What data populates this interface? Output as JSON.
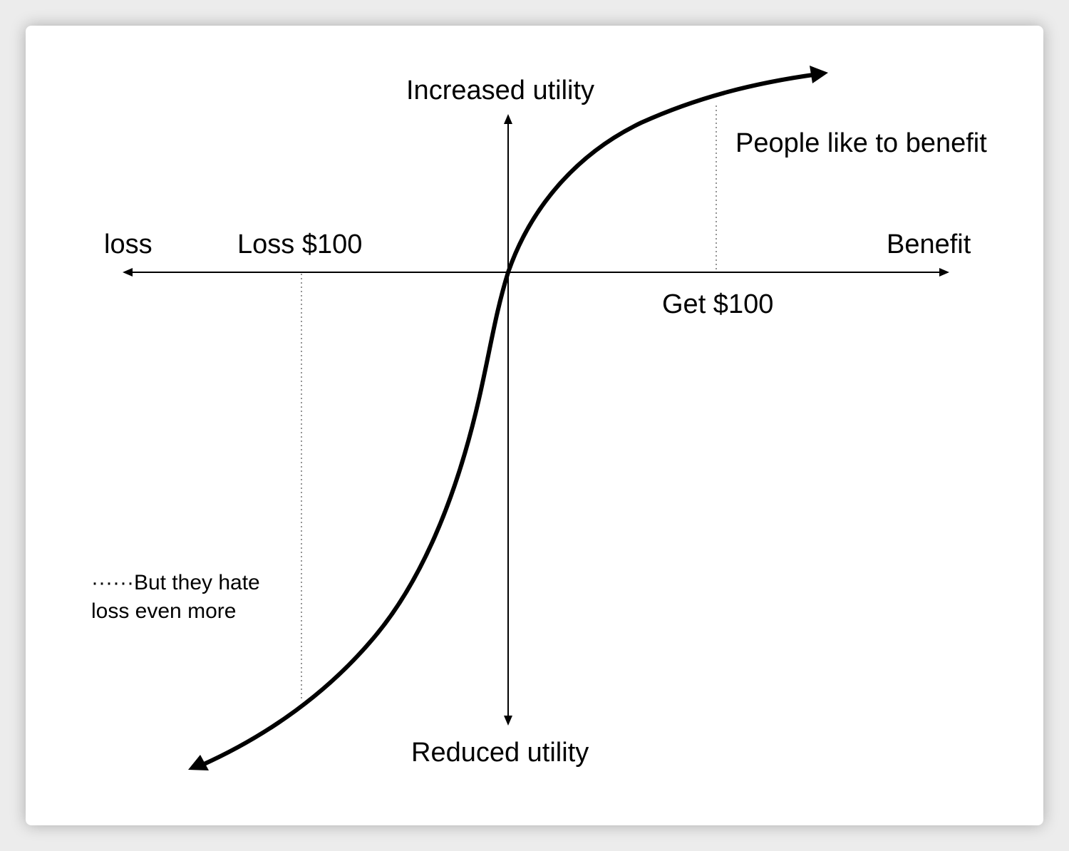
{
  "diagram": {
    "labels": {
      "increased_utility": "Increased utility",
      "reduced_utility": "Reduced utility",
      "loss": "loss",
      "benefit": "Benefit",
      "loss_100": "Loss $100",
      "get_100": "Get $100",
      "people_like": "People like to benefit",
      "hate_line1": "······But they hate",
      "hate_line2": "loss even more"
    },
    "colors": {
      "background": "#ececec",
      "card": "#ffffff",
      "ink": "#000000",
      "dotted_guide": "#7a7a7a"
    }
  }
}
